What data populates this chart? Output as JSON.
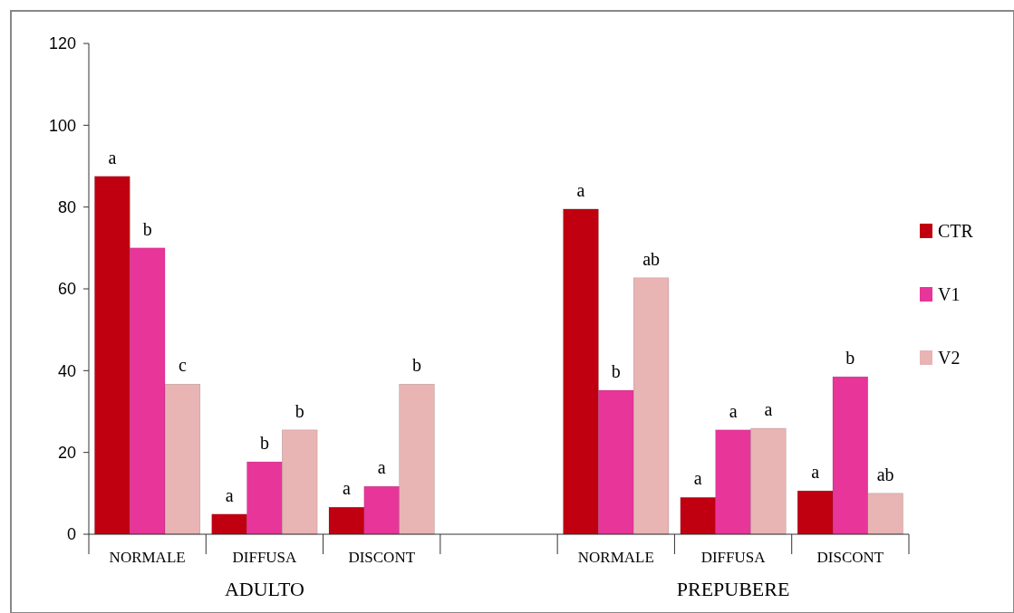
{
  "chart_data": {
    "type": "bar",
    "categories": [
      "NORMALE",
      "DIFFUSA",
      "DISCONT",
      null,
      "NORMALE",
      "DIFFUSA",
      "DISCONT"
    ],
    "series": [
      {
        "name": "CTR",
        "color": "#c00010",
        "values": [
          87.5,
          4.9,
          6.6,
          null,
          79.5,
          9,
          10.6
        ],
        "value_labels": [
          "a",
          "a",
          "a",
          null,
          "a",
          "a",
          "a"
        ]
      },
      {
        "name": "V1",
        "color": "#e8359a",
        "values": [
          70,
          17.7,
          11.7,
          null,
          35.2,
          25.5,
          38.5
        ],
        "value_labels": [
          "b",
          "b",
          "a",
          null,
          "b",
          "a",
          "b"
        ]
      },
      {
        "name": "V2",
        "color": "#e8b4b4",
        "values": [
          36.7,
          25.5,
          36.7,
          null,
          62.7,
          25.9,
          10
        ],
        "value_labels": [
          "c",
          "b",
          "b",
          null,
          "ab",
          "a",
          "ab"
        ]
      }
    ],
    "ylim": [
      0,
      120
    ],
    "yticks": [
      0,
      20,
      40,
      60,
      80,
      100,
      120
    ],
    "legend": "right",
    "grid": false,
    "annotations": [
      "ADULTO",
      "PREPUBERE"
    ]
  }
}
